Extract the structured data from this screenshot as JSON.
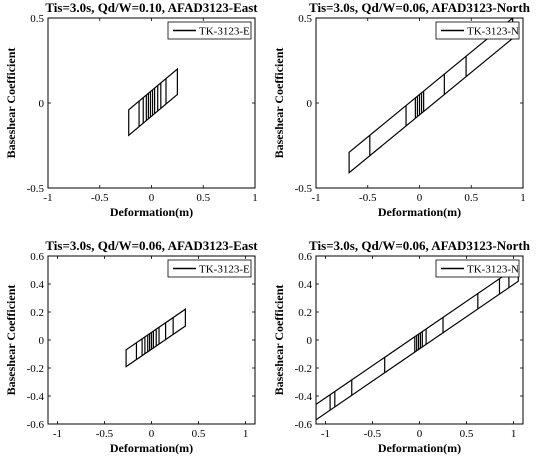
{
  "chart_data": [
    {
      "type": "line",
      "title": "Tis=3.0s, Qd/W=0.10, AFAD3123-East",
      "xlabel": "Deformation(m)",
      "ylabel": "Baseshear Coefficient",
      "xlim": [
        -1,
        1
      ],
      "ylim": [
        -0.5,
        0.5
      ],
      "xticks": [
        -1,
        -0.5,
        0,
        0.5,
        1
      ],
      "xtick_labels": [
        "-1",
        "-0.5",
        "0",
        "0.5",
        "1"
      ],
      "yticks": [
        -0.5,
        0,
        0.5
      ],
      "ytick_labels": [
        "-0.5",
        "0",
        "0.5"
      ],
      "legend": "top-right",
      "series": [
        {
          "name": "TK-3123-E",
          "color": "#000000",
          "loop": {
            "xmin": -0.22,
            "xmax": 0.25,
            "yb_left": -0.19,
            "yt_right": 0.2,
            "yt_left": -0.04,
            "yb_right": 0.05
          },
          "inner_x": [
            -0.12,
            -0.08,
            -0.05,
            -0.03,
            -0.01,
            0.01,
            0.03,
            0.06,
            0.09,
            0.14
          ]
        }
      ]
    },
    {
      "type": "line",
      "title": "Tis=3.0s, Qd/W=0.06, AFAD3123-North",
      "xlabel": "Deformation(m)",
      "ylabel": "Baseshear Coefficient",
      "xlim": [
        -1,
        1
      ],
      "ylim": [
        -0.5,
        0.5
      ],
      "xticks": [
        -1,
        -0.5,
        0,
        0.5,
        1
      ],
      "xtick_labels": [
        "-1",
        "-0.5",
        "0",
        "0.5",
        "1"
      ],
      "yticks": [
        -0.5,
        0,
        0.5
      ],
      "ytick_labels": [
        "-0.5",
        "0",
        "0.5"
      ],
      "legend": "top-right",
      "series": [
        {
          "name": "TK-3123-N",
          "color": "#000000",
          "loop": {
            "xmin": -0.68,
            "xmax": 0.9,
            "yb_left": -0.41,
            "yt_right": 0.5,
            "yt_left": -0.29,
            "yb_right": 0.38
          },
          "inner_x": [
            -0.48,
            -0.13,
            -0.04,
            -0.02,
            0.0,
            0.02,
            0.04,
            0.24,
            0.45
          ]
        }
      ]
    },
    {
      "type": "line",
      "title": "Tis=3.0s, Qd/W=0.06, AFAD3123-East",
      "xlabel": "Deformation(m)",
      "ylabel": "Baseshear Coefficient",
      "xlim": [
        -1.1,
        1.1
      ],
      "ylim": [
        -0.6,
        0.6
      ],
      "xticks": [
        -1,
        -0.5,
        0,
        0.5,
        1
      ],
      "xtick_labels": [
        "-1",
        "-0.5",
        "0",
        "0.5",
        "1"
      ],
      "yticks": [
        -0.6,
        -0.4,
        -0.2,
        0,
        0.2,
        0.4,
        0.6
      ],
      "ytick_labels": [
        "-0.6",
        "-0.4",
        "-0.2",
        "0",
        "0.2",
        "0.4",
        "0.6"
      ],
      "legend": "top-right",
      "series": [
        {
          "name": "TK-3123-E",
          "color": "#000000",
          "loop": {
            "xmin": -0.27,
            "xmax": 0.36,
            "yb_left": -0.19,
            "yt_right": 0.22,
            "yt_left": -0.07,
            "yb_right": 0.1
          },
          "inner_x": [
            -0.16,
            -0.1,
            -0.07,
            -0.04,
            -0.02,
            0.0,
            0.02,
            0.05,
            0.08,
            0.15,
            0.23
          ]
        }
      ]
    },
    {
      "type": "line",
      "title": "Tis=3.0s, Qd/W=0.06, AFAD3123-North",
      "xlabel": "Deformation(m)",
      "ylabel": "Baseshear Coefficient",
      "xlim": [
        -1.1,
        1.1
      ],
      "ylim": [
        -0.6,
        0.6
      ],
      "xticks": [
        -1,
        -0.5,
        0,
        0.5,
        1
      ],
      "xtick_labels": [
        "-1",
        "-0.5",
        "0",
        "0.5",
        "1"
      ],
      "yticks": [
        -0.6,
        -0.4,
        -0.2,
        0,
        0.2,
        0.4,
        0.6
      ],
      "ytick_labels": [
        "-0.6",
        "-0.4",
        "-0.2",
        "0",
        "0.2",
        "0.4",
        "0.6"
      ],
      "legend": "top-right",
      "series": [
        {
          "name": "TK-3123-N",
          "color": "#000000",
          "loop": {
            "xmin": -1.1,
            "xmax": 1.05,
            "yb_left": -0.57,
            "yt_right": 0.53,
            "yt_left": -0.46,
            "yb_right": 0.42
          },
          "inner_x": [
            -0.95,
            -0.9,
            -0.72,
            -0.37,
            -0.05,
            -0.03,
            -0.01,
            0.01,
            0.03,
            0.07,
            0.25,
            0.62,
            0.85,
            0.95
          ]
        }
      ]
    }
  ]
}
